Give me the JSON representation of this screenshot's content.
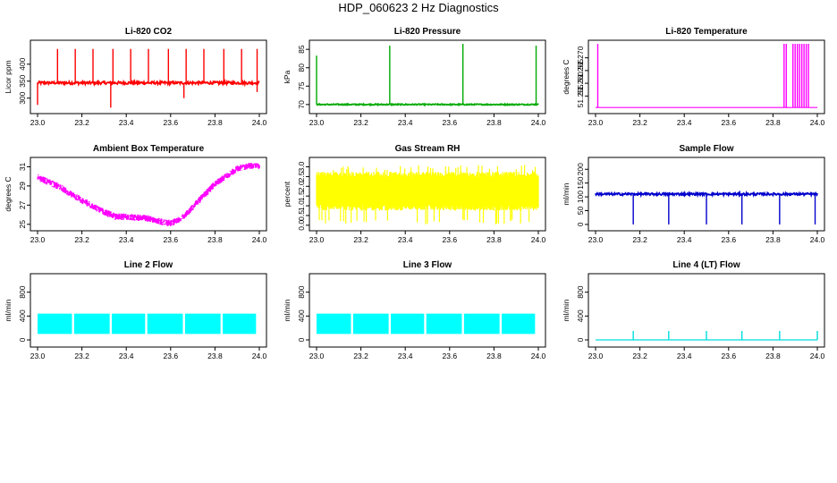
{
  "figure_title": "HDP_060623  2 Hz Diagnostics",
  "chart_data": [
    {
      "type": "line",
      "title": "Li-820 CO2",
      "xlabel": "",
      "ylabel": "Licor ppm",
      "color": "#ff0000",
      "xlim": [
        23.0,
        24.0
      ],
      "xticks": [
        "23.0",
        "23.2",
        "23.4",
        "23.6",
        "23.8",
        "24.0"
      ],
      "ylim": [
        265,
        460
      ],
      "yticks": [
        "300",
        "350",
        "400"
      ],
      "baseline": 345,
      "noise": 4,
      "spikes_up": [
        [
          23.09,
          445
        ],
        [
          23.17,
          445
        ],
        [
          23.25,
          445
        ],
        [
          23.34,
          445
        ],
        [
          23.42,
          445
        ],
        [
          23.5,
          445
        ],
        [
          23.59,
          445
        ],
        [
          23.67,
          445
        ],
        [
          23.75,
          445
        ],
        [
          23.84,
          445
        ],
        [
          23.92,
          445
        ],
        [
          23.99,
          445
        ]
      ],
      "spikes_down": [
        [
          23.0,
          280
        ],
        [
          23.33,
          272
        ],
        [
          23.66,
          300
        ],
        [
          23.99,
          318
        ]
      ]
    },
    {
      "type": "line",
      "title": "Li-820 Pressure",
      "xlabel": "",
      "ylabel": "kPa",
      "color": "#00aa00",
      "xlim": [
        23.0,
        24.0
      ],
      "xticks": [
        "23.0",
        "23.2",
        "23.4",
        "23.6",
        "23.8",
        "24.0"
      ],
      "ylim": [
        68.5,
        86.5
      ],
      "yticks": [
        "70",
        "75",
        "80",
        "85"
      ],
      "baseline": 70,
      "noise": 0.15,
      "spikes_up": [
        [
          23.0,
          83.3
        ],
        [
          23.33,
          86
        ],
        [
          23.66,
          86.5
        ],
        [
          23.99,
          86
        ]
      ],
      "spikes_down": []
    },
    {
      "type": "line",
      "title": "Li-820 Temperature",
      "xlabel": "",
      "ylabel": "degrees C",
      "color": "#ff00ff",
      "xlim": [
        23.0,
        24.0
      ],
      "xticks": [
        "23.0",
        "23.2",
        "23.4",
        "23.6",
        "23.8",
        "24.0"
      ],
      "ylim": [
        51.2495,
        51.2755
      ],
      "yticks": [
        "51.255",
        "51.260",
        "51.265",
        "51.270"
      ],
      "baseline": 51.2505,
      "noise": 0,
      "spikes_up": [
        [
          23.01,
          51.2755
        ],
        [
          23.85,
          51.2755
        ],
        [
          23.86,
          51.2755
        ],
        [
          23.89,
          51.2755
        ],
        [
          23.9,
          51.2755
        ],
        [
          23.91,
          51.2755
        ],
        [
          23.92,
          51.2755
        ],
        [
          23.93,
          51.2755
        ],
        [
          23.94,
          51.2755
        ],
        [
          23.95,
          51.2755
        ],
        [
          23.96,
          51.2755
        ]
      ],
      "spikes_down": []
    },
    {
      "type": "line",
      "title": "Ambient Box Temperature",
      "xlabel": "",
      "ylabel": "degrees C",
      "color": "#ff00ff",
      "xlim": [
        23.0,
        24.0
      ],
      "xticks": [
        "23.0",
        "23.2",
        "23.4",
        "23.6",
        "23.8",
        "24.0"
      ],
      "ylim": [
        24.7,
        31.6
      ],
      "yticks": [
        "25",
        "27",
        "29",
        "31"
      ],
      "trend_x": [
        23.0,
        23.1,
        23.2,
        23.3,
        23.35,
        23.4,
        23.5,
        23.55,
        23.6,
        23.65,
        23.7,
        23.8,
        23.9,
        23.95,
        24.0
      ],
      "trend_y": [
        29.9,
        28.9,
        27.5,
        26.3,
        25.8,
        25.8,
        25.6,
        25.3,
        25.1,
        25.6,
        26.8,
        29.2,
        30.8,
        31.1,
        31.0
      ],
      "noise": 0.35
    },
    {
      "type": "line",
      "title": "Gas Stream RH",
      "xlabel": "",
      "ylabel": "percent",
      "color": "#ffff00",
      "xlim": [
        23.0,
        24.0
      ],
      "xticks": [
        "23.0",
        "23.2",
        "23.4",
        "23.6",
        "23.8",
        "24.0"
      ],
      "ylim": [
        -0.1,
        3.3
      ],
      "yticks": [
        "0.0",
        "0.5",
        "1.0",
        "1.5",
        "2.0",
        "2.5",
        "3.0"
      ],
      "band_low": 0.9,
      "band_high": 2.6,
      "band_min": 0.0,
      "band_max": 3.1
    },
    {
      "type": "line",
      "title": "Sample Flow",
      "xlabel": "",
      "ylabel": "ml/min",
      "color": "#0000cc",
      "xlim": [
        23.0,
        24.0
      ],
      "xticks": [
        "23.0",
        "23.2",
        "23.4",
        "23.6",
        "23.8",
        "24.0"
      ],
      "ylim": [
        -10,
        230
      ],
      "yticks": [
        "0",
        "50",
        "100",
        "150",
        "200"
      ],
      "baseline": 110,
      "noise": 4,
      "spikes_up": [],
      "spikes_down": [
        [
          23.17,
          0
        ],
        [
          23.33,
          0
        ],
        [
          23.5,
          0
        ],
        [
          23.66,
          0
        ],
        [
          23.83,
          0
        ],
        [
          23.99,
          0
        ]
      ]
    },
    {
      "type": "area",
      "title": "Line 2 Flow",
      "xlabel": "",
      "ylabel": "ml/min",
      "color": "#00ffff",
      "xlim": [
        23.0,
        24.0
      ],
      "xticks": [
        "23.0",
        "23.2",
        "23.4",
        "23.6",
        "23.8",
        "24.0"
      ],
      "ylim": [
        -60,
        1050
      ],
      "yticks": [
        "0",
        "400",
        "800"
      ],
      "band_low": 100,
      "band_high": 440,
      "gaps": [
        23.16,
        23.33,
        23.49,
        23.66,
        23.83
      ]
    },
    {
      "type": "area",
      "title": "Line 3 Flow",
      "xlabel": "",
      "ylabel": "ml/min",
      "color": "#00ffff",
      "xlim": [
        23.0,
        24.0
      ],
      "xticks": [
        "23.0",
        "23.2",
        "23.4",
        "23.6",
        "23.8",
        "24.0"
      ],
      "ylim": [
        -60,
        1050
      ],
      "yticks": [
        "0",
        "400",
        "800"
      ],
      "band_low": 100,
      "band_high": 440,
      "gaps": [
        23.16,
        23.33,
        23.49,
        23.66,
        23.83
      ]
    },
    {
      "type": "line",
      "title": "Line 4 (LT) Flow",
      "xlabel": "",
      "ylabel": "ml/min",
      "color": "#00dddd",
      "xlim": [
        23.0,
        24.0
      ],
      "xticks": [
        "23.0",
        "23.2",
        "23.4",
        "23.6",
        "23.8",
        "24.0"
      ],
      "ylim": [
        -60,
        1050
      ],
      "yticks": [
        "0",
        "400",
        "800"
      ],
      "baseline": 0,
      "noise": 0,
      "spikes_up": [
        [
          23.17,
          150
        ],
        [
          23.33,
          150
        ],
        [
          23.5,
          150
        ],
        [
          23.66,
          150
        ],
        [
          23.83,
          150
        ],
        [
          24.0,
          150
        ]
      ],
      "spikes_down": []
    }
  ]
}
